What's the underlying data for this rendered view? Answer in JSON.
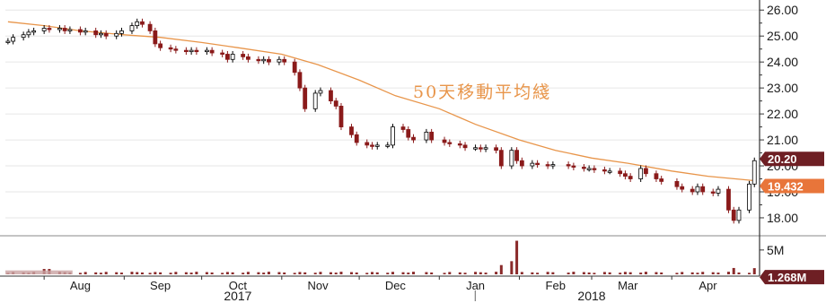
{
  "chart_data": {
    "type": "candlestick",
    "price_panel": {
      "y_ticks": [
        "26.00",
        "25.00",
        "24.00",
        "23.00",
        "22.00",
        "21.00",
        "20.00",
        "19.00",
        "18.00"
      ],
      "ylim": [
        17.55,
        26.25
      ],
      "annotation": "50天移動平均綫",
      "last_price_label": "20.20",
      "last_price": 20.2,
      "ma_label": "19.432",
      "ma_value": 19.432,
      "colors": {
        "up": "#000000",
        "down": "#8a1a1a",
        "ma_line": "#e8954a",
        "price_tag": "#6e1f24",
        "ma_tag": "#e8753a"
      },
      "candles": [
        {
          "d": "2017-07-18",
          "c": 24.8
        },
        {
          "d": "2017-07-20",
          "c": 24.95
        },
        {
          "d": "2017-07-24",
          "c": 25.05
        },
        {
          "d": "2017-07-26",
          "c": 25.15
        },
        {
          "d": "2017-07-28",
          "c": 25.2
        },
        {
          "d": "2017-08-01",
          "c": 25.3
        },
        {
          "d": "2017-08-03",
          "c": 25.25
        },
        {
          "d": "2017-08-07",
          "c": 25.3
        },
        {
          "d": "2017-08-09",
          "c": 25.2
        },
        {
          "d": "2017-08-11",
          "c": 25.25
        },
        {
          "d": "2017-08-15",
          "c": 25.15
        },
        {
          "d": "2017-08-17",
          "c": 25.2
        },
        {
          "d": "2017-08-21",
          "c": 25.05
        },
        {
          "d": "2017-08-23",
          "c": 25.1
        },
        {
          "d": "2017-08-25",
          "c": 25.0
        },
        {
          "d": "2017-08-29",
          "c": 25.1
        },
        {
          "d": "2017-08-31",
          "c": 25.2
        },
        {
          "d": "2017-09-04",
          "c": 25.4
        },
        {
          "d": "2017-09-06",
          "c": 25.55
        },
        {
          "d": "2017-09-08",
          "c": 25.45
        },
        {
          "d": "2017-09-11",
          "c": 25.2
        },
        {
          "d": "2017-09-13",
          "c": 24.7
        },
        {
          "d": "2017-09-15",
          "c": 24.55
        },
        {
          "d": "2017-09-19",
          "c": 24.5
        },
        {
          "d": "2017-09-21",
          "c": 24.45
        },
        {
          "d": "2017-09-25",
          "c": 24.4
        },
        {
          "d": "2017-09-27",
          "c": 24.45
        },
        {
          "d": "2017-09-29",
          "c": 24.4
        },
        {
          "d": "2017-10-03",
          "c": 24.45
        },
        {
          "d": "2017-10-05",
          "c": 24.35
        },
        {
          "d": "2017-10-09",
          "c": 24.3
        },
        {
          "d": "2017-10-11",
          "c": 24.1
        },
        {
          "d": "2017-10-13",
          "c": 24.3
        },
        {
          "d": "2017-10-17",
          "c": 24.2
        },
        {
          "d": "2017-10-19",
          "c": 24.1
        },
        {
          "d": "2017-10-23",
          "c": 24.05
        },
        {
          "d": "2017-10-25",
          "c": 24.1
        },
        {
          "d": "2017-10-27",
          "c": 24.0
        },
        {
          "d": "2017-10-31",
          "c": 24.1
        },
        {
          "d": "2017-11-02",
          "c": 24.0
        },
        {
          "d": "2017-11-06",
          "c": 23.6
        },
        {
          "d": "2017-11-08",
          "c": 23.0
        },
        {
          "d": "2017-11-10",
          "c": 22.2
        },
        {
          "d": "2017-11-14",
          "c": 22.8
        },
        {
          "d": "2017-11-16",
          "c": 22.9
        },
        {
          "d": "2017-11-20",
          "c": 22.5
        },
        {
          "d": "2017-11-22",
          "c": 22.3
        },
        {
          "d": "2017-11-24",
          "c": 21.5
        },
        {
          "d": "2017-11-28",
          "c": 21.2
        },
        {
          "d": "2017-11-30",
          "c": 20.9
        },
        {
          "d": "2017-12-04",
          "c": 20.8
        },
        {
          "d": "2017-12-06",
          "c": 20.75
        },
        {
          "d": "2017-12-08",
          "c": 20.8
        },
        {
          "d": "2017-12-12",
          "c": 20.8
        },
        {
          "d": "2017-12-14",
          "c": 21.5
        },
        {
          "d": "2017-12-18",
          "c": 21.4
        },
        {
          "d": "2017-12-20",
          "c": 21.1
        },
        {
          "d": "2017-12-22",
          "c": 21.0
        },
        {
          "d": "2017-12-27",
          "c": 21.3
        },
        {
          "d": "2017-12-29",
          "c": 21.0
        },
        {
          "d": "2018-01-03",
          "c": 20.9
        },
        {
          "d": "2018-01-05",
          "c": 20.85
        },
        {
          "d": "2018-01-09",
          "c": 20.8
        },
        {
          "d": "2018-01-11",
          "c": 20.7
        },
        {
          "d": "2018-01-15",
          "c": 20.7
        },
        {
          "d": "2018-01-17",
          "c": 20.65
        },
        {
          "d": "2018-01-19",
          "c": 20.7
        },
        {
          "d": "2018-01-23",
          "c": 20.6
        },
        {
          "d": "2018-01-25",
          "c": 20.0
        },
        {
          "d": "2018-01-29",
          "c": 20.6
        },
        {
          "d": "2018-01-31",
          "c": 20.2
        },
        {
          "d": "2018-02-02",
          "c": 20.0
        },
        {
          "d": "2018-02-06",
          "c": 20.1
        },
        {
          "d": "2018-02-08",
          "c": 20.05
        },
        {
          "d": "2018-02-12",
          "c": 20.0
        },
        {
          "d": "2018-02-14",
          "c": 20.05
        },
        {
          "d": "2018-02-20",
          "c": 20.0
        },
        {
          "d": "2018-02-22",
          "c": 19.95
        },
        {
          "d": "2018-02-26",
          "c": 19.9
        },
        {
          "d": "2018-02-28",
          "c": 19.9
        },
        {
          "d": "2018-03-02",
          "c": 19.85
        },
        {
          "d": "2018-03-06",
          "c": 19.8
        },
        {
          "d": "2018-03-08",
          "c": 19.8
        },
        {
          "d": "2018-03-12",
          "c": 19.7
        },
        {
          "d": "2018-03-14",
          "c": 19.6
        },
        {
          "d": "2018-03-16",
          "c": 19.5
        },
        {
          "d": "2018-03-20",
          "c": 19.9
        },
        {
          "d": "2018-03-22",
          "c": 19.7
        },
        {
          "d": "2018-03-26",
          "c": 19.5
        },
        {
          "d": "2018-03-28",
          "c": 19.4
        },
        {
          "d": "2018-04-03",
          "c": 19.2
        },
        {
          "d": "2018-04-05",
          "c": 19.1
        },
        {
          "d": "2018-04-09",
          "c": 19.0
        },
        {
          "d": "2018-04-11",
          "c": 19.2
        },
        {
          "d": "2018-04-13",
          "c": 19.0
        },
        {
          "d": "2018-04-17",
          "c": 18.95
        },
        {
          "d": "2018-04-19",
          "c": 19.1
        },
        {
          "d": "2018-04-23",
          "c": 18.3
        },
        {
          "d": "2018-04-25",
          "c": 17.9
        },
        {
          "d": "2018-04-27",
          "c": 18.3
        },
        {
          "d": "2018-05-01",
          "c": 19.3
        },
        {
          "d": "2018-05-03",
          "c": 20.2
        }
      ],
      "ma50": [
        {
          "d": "2017-07-18",
          "v": 25.55
        },
        {
          "d": "2017-08-01",
          "v": 25.4
        },
        {
          "d": "2017-08-15",
          "v": 25.2
        },
        {
          "d": "2017-09-01",
          "v": 25.05
        },
        {
          "d": "2017-09-15",
          "v": 24.95
        },
        {
          "d": "2017-10-01",
          "v": 24.75
        },
        {
          "d": "2017-10-15",
          "v": 24.55
        },
        {
          "d": "2017-11-01",
          "v": 24.3
        },
        {
          "d": "2017-11-15",
          "v": 23.9
        },
        {
          "d": "2017-12-01",
          "v": 23.3
        },
        {
          "d": "2017-12-15",
          "v": 22.7
        },
        {
          "d": "2018-01-01",
          "v": 22.2
        },
        {
          "d": "2018-01-15",
          "v": 21.6
        },
        {
          "d": "2018-02-01",
          "v": 21.0
        },
        {
          "d": "2018-02-15",
          "v": 20.6
        },
        {
          "d": "2018-03-01",
          "v": 20.3
        },
        {
          "d": "2018-03-15",
          "v": 20.1
        },
        {
          "d": "2018-04-01",
          "v": 19.8
        },
        {
          "d": "2018-04-15",
          "v": 19.6
        },
        {
          "d": "2018-05-03",
          "v": 19.432
        }
      ]
    },
    "volume_panel": {
      "y_ticks": [
        "5M"
      ],
      "ylim": [
        0,
        7000000
      ],
      "last_volume_label": "1.268M",
      "last_volume": 1268000,
      "colors": {
        "bar": "#8a2a2a",
        "tag": "#6e1f24"
      },
      "spikes": [
        {
          "d": "2017-08-01",
          "v": 1100000
        },
        {
          "d": "2017-08-03",
          "v": 1100000
        },
        {
          "d": "2017-11-01",
          "v": 3700000
        },
        {
          "d": "2018-01-25",
          "v": 1900000
        },
        {
          "d": "2018-01-29",
          "v": 2700000
        },
        {
          "d": "2018-01-31",
          "v": 6900000
        },
        {
          "d": "2018-04-25",
          "v": 1300000
        },
        {
          "d": "2018-05-03",
          "v": 1268000
        }
      ],
      "baseline_volume": 500000
    },
    "x_axis": {
      "months": [
        {
          "label": "Aug",
          "d": "2017-08-15"
        },
        {
          "label": "Sep",
          "d": "2017-09-15"
        },
        {
          "label": "Oct",
          "d": "2017-10-15"
        },
        {
          "label": "Nov",
          "d": "2017-11-15"
        },
        {
          "label": "Dec",
          "d": "2017-12-15"
        },
        {
          "label": "Jan",
          "d": "2018-01-15"
        },
        {
          "label": "Feb",
          "d": "2018-02-15"
        },
        {
          "label": "Mar",
          "d": "2018-03-15"
        },
        {
          "label": "Apr",
          "d": "2018-04-15"
        }
      ],
      "years": [
        {
          "label": "2017",
          "d": "2017-10-15"
        },
        {
          "label": "2018",
          "d": "2018-03-01"
        }
      ],
      "xlim": [
        "2017-07-17",
        "2018-05-05"
      ]
    }
  }
}
